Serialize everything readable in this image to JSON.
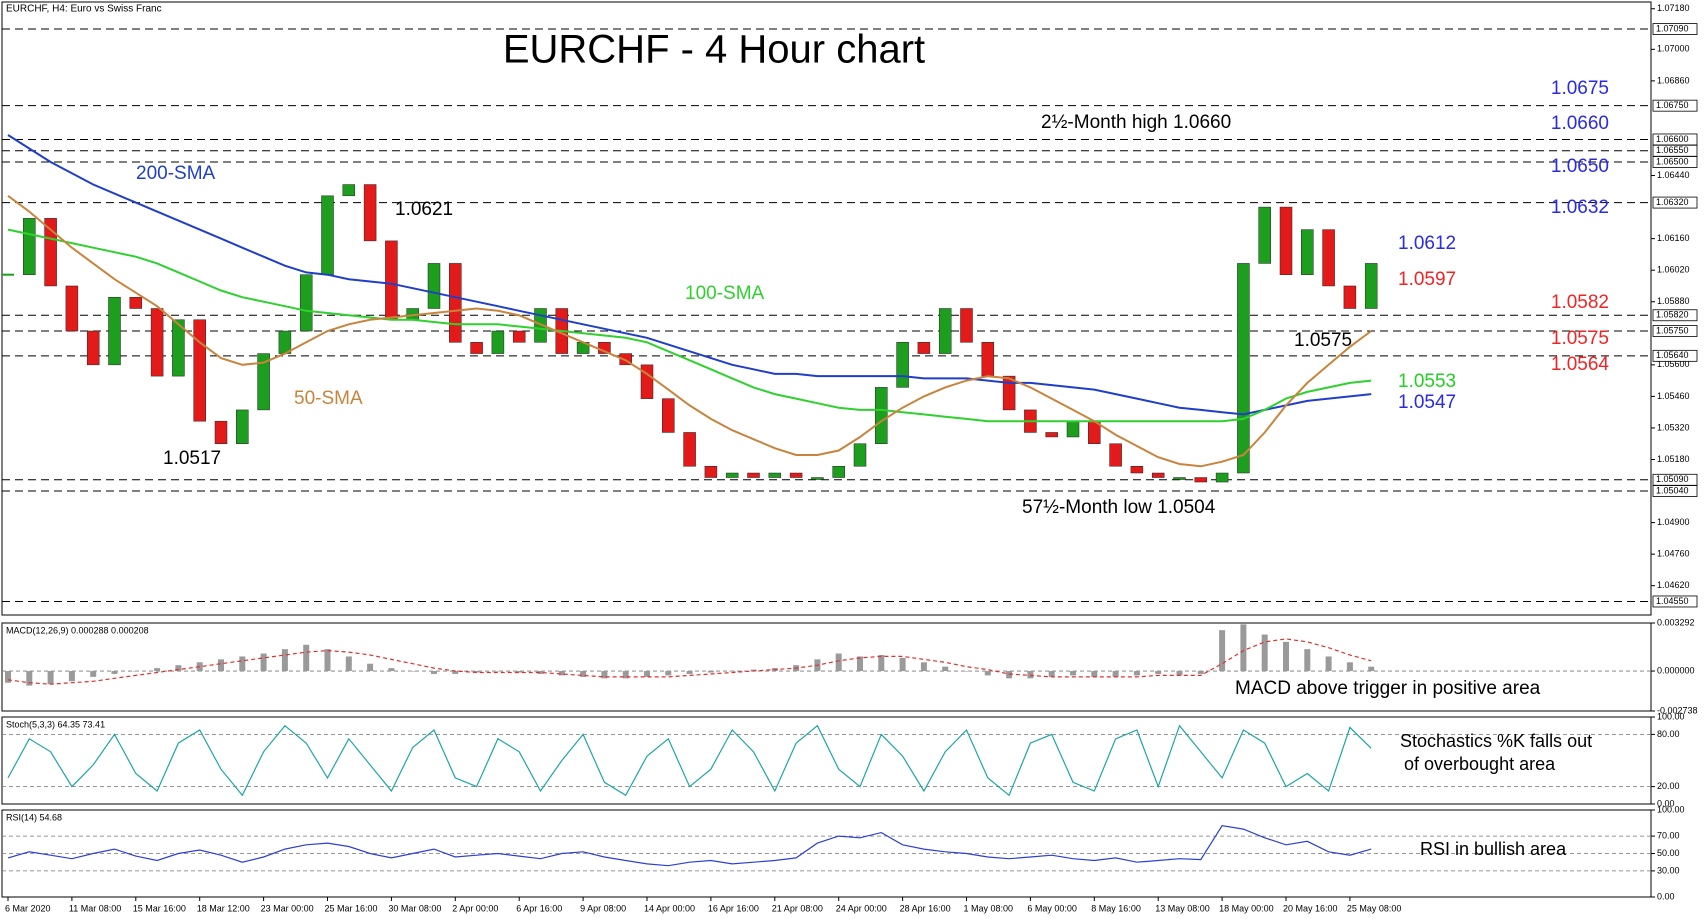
{
  "header": "EURCHF, H4:  Euro vs Swiss Franc",
  "chart_data": [
    {
      "type": "candlestick",
      "title": "EURCHF - 4 Hour chart",
      "values": [
        1.06,
        1.0625,
        1.0595,
        1.0575,
        1.056,
        1.059,
        1.0585,
        1.0555,
        1.058,
        1.0535,
        1.0525,
        1.054,
        1.0565,
        1.0575,
        1.06,
        1.0635,
        1.064,
        1.0615,
        1.058,
        1.0585,
        1.0605,
        1.057,
        1.0565,
        1.0575,
        1.057,
        1.0585,
        1.0565,
        1.057,
        1.0565,
        1.056,
        1.0545,
        1.053,
        1.0515,
        1.051,
        1.0512,
        1.051,
        1.0512,
        1.051,
        1.051,
        1.0515,
        1.0525,
        1.055,
        1.057,
        1.0565,
        1.0585,
        1.057,
        1.0555,
        1.054,
        1.053,
        1.0528,
        1.0535,
        1.0525,
        1.0515,
        1.0512,
        1.051,
        1.051,
        1.0508,
        1.0512,
        1.0605,
        1.063,
        1.06,
        1.062,
        1.0595,
        1.0585,
        1.0605
      ],
      "up_color": "#1e9e1e",
      "down_color": "#e31a1a",
      "ylim": [
        1.0449,
        1.0721
      ],
      "yticks": [
        {
          "value": 1.0718,
          "label": "1.07180"
        },
        {
          "value": 1.07,
          "label": "1.07000"
        },
        {
          "value": 1.0686,
          "label": "1.06860"
        },
        {
          "value": 1.0644,
          "label": "1.06440"
        },
        {
          "value": 1.0616,
          "label": "1.06160"
        },
        {
          "value": 1.0602,
          "label": "1.06020"
        },
        {
          "value": 1.0588,
          "label": "1.05880"
        },
        {
          "value": 1.056,
          "label": "1.05600"
        },
        {
          "value": 1.0546,
          "label": "1.05460"
        },
        {
          "value": 1.0532,
          "label": "1.05320"
        },
        {
          "value": 1.0518,
          "label": "1.05180"
        },
        {
          "value": 1.049,
          "label": "1.04900"
        },
        {
          "value": 1.0476,
          "label": "1.04760"
        },
        {
          "value": 1.0462,
          "label": "1.04620"
        }
      ],
      "levels": [
        {
          "value": 1.0709,
          "label": "1.07090"
        },
        {
          "value": 1.0675,
          "label": "1.06750"
        },
        {
          "value": 1.066,
          "label": "1.06600"
        },
        {
          "value": 1.0655,
          "label": "1.06550"
        },
        {
          "value": 1.065,
          "label": "1.06500"
        },
        {
          "value": 1.0632,
          "label": "1.06320"
        },
        {
          "value": 1.0582,
          "label": "1.05820"
        },
        {
          "value": 1.0575,
          "label": "1.05750"
        },
        {
          "value": 1.0564,
          "label": "1.05640"
        },
        {
          "value": 1.0509,
          "label": "1.05090"
        },
        {
          "value": 1.0504,
          "label": "1.05040"
        },
        {
          "value": 1.0455,
          "label": "1.04550"
        }
      ],
      "series": [
        {
          "name": "200-SMA",
          "color": "#1f3fc8",
          "values": [
            1.0662,
            1.0656,
            1.065,
            1.0645,
            1.064,
            1.0636,
            1.0632,
            1.0628,
            1.0624,
            1.062,
            1.0616,
            1.0612,
            1.0608,
            1.0604,
            1.0601,
            1.06,
            1.0598,
            1.0597,
            1.0596,
            1.0594,
            1.0592,
            1.059,
            1.0588,
            1.0586,
            1.0584,
            1.0582,
            1.058,
            1.0578,
            1.0576,
            1.0574,
            1.0572,
            1.0569,
            1.0566,
            1.0563,
            1.056,
            1.0558,
            1.0556,
            1.0556,
            1.0555,
            1.0555,
            1.0555,
            1.0555,
            1.0555,
            1.0554,
            1.0554,
            1.0554,
            1.0553,
            1.0552,
            1.0552,
            1.0551,
            1.055,
            1.0549,
            1.0547,
            1.0545,
            1.0543,
            1.0541,
            1.054,
            1.0539,
            1.0538,
            1.054,
            1.0542,
            1.0544,
            1.0545,
            1.0546,
            1.0547
          ]
        },
        {
          "name": "100-SMA",
          "color": "#2ed12e",
          "values": [
            1.062,
            1.0618,
            1.0616,
            1.0614,
            1.0612,
            1.061,
            1.0608,
            1.0605,
            1.0601,
            1.0597,
            1.0593,
            1.059,
            1.0588,
            1.0586,
            1.0584,
            1.0583,
            1.0582,
            1.0581,
            1.058,
            1.058,
            1.0579,
            1.0578,
            1.0578,
            1.0578,
            1.0577,
            1.0576,
            1.0575,
            1.0574,
            1.0573,
            1.0572,
            1.057,
            1.0566,
            1.0562,
            1.0558,
            1.0554,
            1.055,
            1.0547,
            1.0545,
            1.0543,
            1.0541,
            1.054,
            1.054,
            1.0539,
            1.0538,
            1.0537,
            1.0536,
            1.0535,
            1.0535,
            1.0535,
            1.0535,
            1.0535,
            1.0535,
            1.0535,
            1.0535,
            1.0535,
            1.0535,
            1.0535,
            1.0535,
            1.0536,
            1.054,
            1.0545,
            1.0548,
            1.055,
            1.0552,
            1.0553
          ]
        },
        {
          "name": "50-SMA",
          "color": "#c8843c",
          "values": [
            1.0635,
            1.0628,
            1.062,
            1.0612,
            1.0605,
            1.0598,
            1.0592,
            1.0586,
            1.0578,
            1.057,
            1.0563,
            1.056,
            1.0561,
            1.0565,
            1.057,
            1.0575,
            1.0578,
            1.058,
            1.0581,
            1.0582,
            1.0583,
            1.0584,
            1.0585,
            1.0584,
            1.0582,
            1.0578,
            1.0574,
            1.057,
            1.0566,
            1.0562,
            1.0556,
            1.0549,
            1.0542,
            1.0536,
            1.0531,
            1.0527,
            1.0523,
            1.052,
            1.052,
            1.0522,
            1.0528,
            1.0535,
            1.0541,
            1.0546,
            1.055,
            1.0553,
            1.0555,
            1.0554,
            1.055,
            1.0545,
            1.054,
            1.0535,
            1.0529,
            1.0524,
            1.0519,
            1.0516,
            1.0515,
            1.0517,
            1.052,
            1.053,
            1.0542,
            1.0552,
            1.056,
            1.0568,
            1.0575
          ]
        }
      ],
      "annotations": [
        {
          "text": "1.0621",
          "color": "#000000"
        },
        {
          "text": "1.0517",
          "color": "#000000"
        },
        {
          "text": "2½-Month high 1.0660",
          "color": "#000000"
        },
        {
          "text": "57½-Month low 1.0504",
          "color": "#000000"
        },
        {
          "text": "1.0575",
          "color": "#000000"
        },
        {
          "text": "1.0675",
          "color": "#2a2ae6"
        },
        {
          "text": "1.0660",
          "color": "#2a2ae6"
        },
        {
          "text": "1.0650",
          "color": "#2a2ae6"
        },
        {
          "text": "1.0632",
          "color": "#2a2ae6"
        },
        {
          "text": "1.0612",
          "color": "#2a2ae6"
        },
        {
          "text": "1.0597",
          "color": "#f02424"
        },
        {
          "text": "1.0582",
          "color": "#f02424"
        },
        {
          "text": "1.0575",
          "color": "#f02424"
        },
        {
          "text": "1.0564",
          "color": "#f02424"
        },
        {
          "text": "1.0553",
          "color": "#22d022"
        },
        {
          "text": "1.0547",
          "color": "#2a2ae6"
        }
      ]
    },
    {
      "type": "macd",
      "label": "MACD(12,26,9) 0.000288 0.000208",
      "values": [
        -0.0008,
        -0.001,
        -0.0009,
        -0.0007,
        -0.0004,
        -0.0002,
        0.0,
        0.0002,
        0.0004,
        0.0006,
        0.0008,
        0.001,
        0.0012,
        0.0015,
        0.0018,
        0.0015,
        0.001,
        0.0005,
        0.0002,
        0.0,
        -0.0002,
        -0.0002,
        -0.0001,
        0.0,
        -0.0001,
        -0.0002,
        -0.0003,
        -0.0004,
        -0.0005,
        -0.0005,
        -0.0004,
        -0.0003,
        -0.0002,
        -0.0001,
        0.0,
        0.0001,
        0.0002,
        0.0004,
        0.0008,
        0.0012,
        0.001,
        0.0011,
        0.0009,
        0.0006,
        0.0003,
        0.0,
        -0.0003,
        -0.0005,
        -0.0005,
        -0.0004,
        -0.0003,
        -0.0004,
        -0.0004,
        -0.0003,
        -0.0002,
        -0.0003,
        -0.0002,
        0.0028,
        0.0032,
        0.0025,
        0.002,
        0.0015,
        0.001,
        0.0006,
        0.0003
      ],
      "color": "#9a9a9a",
      "series": [
        {
          "color": "#e03030",
          "values": [
            -0.0006,
            -0.0008,
            -0.0009,
            -0.0008,
            -0.0007,
            -0.0005,
            -0.0003,
            -0.0001,
            0.0001,
            0.0003,
            0.0005,
            0.0007,
            0.0009,
            0.0011,
            0.0013,
            0.0014,
            0.0013,
            0.0011,
            0.0008,
            0.0005,
            0.0002,
            0.0,
            -0.0001,
            -0.0001,
            -0.0001,
            -0.0001,
            -0.0002,
            -0.0003,
            -0.0004,
            -0.0004,
            -0.0004,
            -0.0004,
            -0.0003,
            -0.0002,
            -0.0001,
            0.0,
            0.0001,
            0.0002,
            0.0004,
            0.0007,
            0.0009,
            0.001,
            0.001,
            0.0008,
            0.0006,
            0.0003,
            0.0001,
            -0.0002,
            -0.0003,
            -0.0004,
            -0.0004,
            -0.0004,
            -0.0004,
            -0.0004,
            -0.0003,
            -0.0003,
            -0.0003,
            0.0005,
            0.0014,
            0.002,
            0.0022,
            0.002,
            0.0016,
            0.0011,
            0.0007
          ]
        }
      ],
      "ylim": [
        -0.002738,
        0.003292
      ],
      "yticks": [
        0.003292,
        {
          "value": 0,
          "label": "0.000000"
        },
        -0.002738
      ],
      "notes": [
        "MACD above trigger in positive area"
      ]
    },
    {
      "type": "line",
      "label": "Stoch(5,3,3) 64.35 73.41",
      "series": [
        {
          "color": "#1fa5a5",
          "values": [
            30,
            75,
            60,
            20,
            45,
            80,
            35,
            15,
            70,
            85,
            40,
            10,
            60,
            90,
            70,
            30,
            75,
            45,
            15,
            65,
            85,
            30,
            20,
            75,
            60,
            15,
            50,
            80,
            25,
            10,
            55,
            75,
            20,
            40,
            85,
            60,
            15,
            70,
            90,
            40,
            20,
            80,
            55,
            15,
            60,
            85,
            30,
            10,
            70,
            80,
            25,
            15,
            75,
            85,
            20,
            90,
            60,
            30,
            85,
            70,
            20,
            35,
            15,
            88,
            64
          ]
        }
      ],
      "ylim": [
        0,
        100
      ],
      "yticks": [
        {
          "value": 100,
          "label": "100.00"
        },
        {
          "value": 80,
          "label": "80.00"
        },
        {
          "value": 20,
          "label": "20.00"
        },
        {
          "value": 0,
          "label": "0.00"
        }
      ],
      "notes": [
        "Stochastics %K falls out",
        "of overbought area"
      ]
    },
    {
      "type": "line",
      "label": "RSI(14) 54.68",
      "series": [
        {
          "color": "#2d3fd6",
          "values": [
            45,
            52,
            48,
            44,
            50,
            55,
            47,
            42,
            50,
            54,
            48,
            40,
            46,
            55,
            60,
            62,
            58,
            50,
            45,
            50,
            55,
            46,
            48,
            50,
            47,
            44,
            50,
            52,
            46,
            42,
            38,
            36,
            40,
            42,
            38,
            40,
            42,
            45,
            62,
            70,
            68,
            74,
            60,
            55,
            52,
            50,
            46,
            44,
            46,
            48,
            44,
            42,
            45,
            40,
            42,
            44,
            43,
            82,
            78,
            68,
            60,
            64,
            52,
            48,
            55
          ]
        }
      ],
      "ylim": [
        0,
        100
      ],
      "yticks": [
        {
          "value": 100,
          "label": "100.00"
        },
        {
          "value": 70,
          "label": "70.00"
        },
        {
          "value": 50,
          "label": "50.00"
        },
        {
          "value": 30,
          "label": "30.00"
        },
        {
          "value": 0,
          "label": "0.00"
        }
      ],
      "notes": [
        "RSI in bullish area"
      ],
      "categories": [
        "6 Mar 2020",
        null,
        null,
        "11 Mar 08:00",
        null,
        null,
        "15 Mar 16:00",
        null,
        null,
        "18 Mar 12:00",
        null,
        null,
        "23 Mar 00:00",
        null,
        null,
        "25 Mar 16:00",
        null,
        null,
        "30 Mar 08:00",
        null,
        null,
        "2 Apr 00:00",
        null,
        null,
        "6 Apr 16:00",
        null,
        null,
        "9 Apr 08:00",
        null,
        null,
        "14 Apr 00:00",
        null,
        null,
        "16 Apr 16:00",
        null,
        null,
        "21 Apr 08:00",
        null,
        null,
        "24 Apr 00:00",
        null,
        null,
        "28 Apr 16:00",
        null,
        null,
        "1 May 08:00",
        null,
        null,
        "6 May 00:00",
        null,
        null,
        "8 May 16:00",
        null,
        null,
        "13 May 08:00",
        null,
        null,
        "18 May 00:00",
        null,
        null,
        "20 May 16:00",
        null,
        null,
        "25 May 08:00",
        null
      ]
    }
  ]
}
